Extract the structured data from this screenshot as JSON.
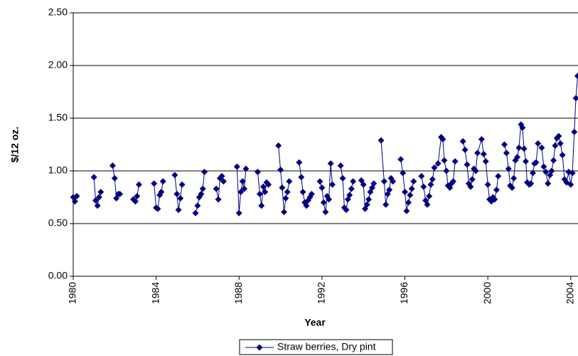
{
  "chart_data": {
    "type": "line",
    "y_label": "$/12 oz.",
    "x_label": "Year",
    "x": [
      1980.0,
      1980.08,
      1980.17,
      null,
      1981.0,
      1981.08,
      1981.17,
      1981.25,
      1981.33,
      null,
      1981.9,
      1982.0,
      1982.08,
      1982.17,
      1982.25,
      null,
      1982.9,
      1983.0,
      1983.08,
      1983.17,
      null,
      1983.9,
      1984.0,
      1984.08,
      1984.17,
      1984.25,
      1984.33,
      null,
      1984.9,
      1985.0,
      1985.08,
      1985.17,
      1985.25,
      null,
      1985.9,
      1986.0,
      1986.08,
      1986.17,
      1986.25,
      1986.33,
      null,
      1986.9,
      1987.0,
      1987.08,
      1987.17,
      1987.25,
      null,
      1987.9,
      1988.0,
      1988.08,
      1988.17,
      1988.25,
      1988.33,
      null,
      1988.9,
      1989.0,
      1989.08,
      1989.17,
      1989.25,
      1989.33,
      1989.42,
      null,
      1989.9,
      1990.0,
      1990.08,
      1990.17,
      1990.25,
      1990.33,
      1990.42,
      null,
      1990.9,
      1991.0,
      1991.08,
      1991.17,
      1991.25,
      1991.33,
      1991.42,
      1991.5,
      null,
      1991.9,
      1992.0,
      1992.08,
      1992.17,
      1992.25,
      1992.33,
      1992.42,
      1992.5,
      null,
      1992.9,
      1993.0,
      1993.08,
      1993.17,
      1993.25,
      1993.33,
      1993.42,
      1993.5,
      null,
      1993.9,
      1994.0,
      1994.08,
      1994.17,
      1994.25,
      1994.33,
      1994.42,
      1994.5,
      null,
      1994.85,
      1995.0,
      1995.08,
      1995.17,
      1995.25,
      1995.33,
      1995.42,
      null,
      1995.8,
      1995.9,
      1996.0,
      1996.08,
      1996.17,
      1996.25,
      1996.33,
      1996.42,
      null,
      1996.8,
      1996.9,
      1997.0,
      1997.08,
      1997.17,
      1997.25,
      1997.33,
      1997.42,
      1997.6,
      1997.75,
      1997.83,
      1997.9,
      1998.0,
      1998.08,
      1998.17,
      1998.25,
      1998.33,
      1998.42,
      null,
      1998.8,
      1998.9,
      1999.0,
      1999.08,
      1999.17,
      1999.25,
      1999.33,
      1999.42,
      1999.5,
      1999.7,
      1999.8,
      1999.9,
      2000.0,
      2000.08,
      2000.17,
      2000.25,
      2000.33,
      2000.42,
      2000.5,
      null,
      2000.8,
      2000.9,
      2001.0,
      2001.08,
      2001.17,
      2001.25,
      2001.33,
      2001.42,
      2001.5,
      2001.6,
      2001.67,
      2001.75,
      2001.83,
      2001.9,
      2002.0,
      2002.08,
      2002.17,
      2002.25,
      2002.33,
      2002.42,
      null,
      2002.6,
      2002.7,
      2002.8,
      2002.9,
      2003.0,
      2003.08,
      2003.17,
      2003.25,
      2003.33,
      2003.42,
      2003.5,
      2003.6,
      2003.7,
      2003.8,
      2003.9,
      2004.0,
      2004.08,
      2004.17,
      2004.25,
      2004.33
    ],
    "series": [
      {
        "name": "Straw berries, Dry pint",
        "color": "#000080",
        "values": [
          0.75,
          0.71,
          0.76,
          null,
          0.94,
          0.72,
          0.67,
          0.75,
          0.8,
          null,
          1.05,
          0.93,
          0.74,
          0.78,
          0.78,
          null,
          0.73,
          0.71,
          0.76,
          0.87,
          null,
          0.88,
          0.65,
          0.64,
          0.77,
          0.8,
          0.9,
          null,
          0.96,
          0.78,
          0.63,
          0.74,
          0.87,
          null,
          0.6,
          0.67,
          0.75,
          0.78,
          0.83,
          0.99,
          null,
          0.83,
          0.73,
          0.93,
          0.95,
          0.9,
          null,
          1.04,
          0.6,
          0.8,
          0.9,
          0.83,
          1.02,
          null,
          0.99,
          0.78,
          0.67,
          0.85,
          0.8,
          0.89,
          0.87,
          null,
          1.24,
          1.01,
          0.84,
          0.61,
          0.74,
          0.8,
          0.9,
          null,
          1.08,
          0.94,
          0.8,
          0.7,
          0.67,
          0.72,
          0.75,
          0.78,
          null,
          0.9,
          0.84,
          0.7,
          0.61,
          0.76,
          0.73,
          1.07,
          0.87,
          null,
          1.05,
          0.93,
          0.65,
          0.63,
          0.73,
          0.77,
          0.83,
          0.9,
          null,
          0.91,
          0.87,
          0.64,
          0.68,
          0.73,
          0.8,
          0.84,
          0.88,
          null,
          1.29,
          0.9,
          0.68,
          0.78,
          0.82,
          0.93,
          0.9,
          null,
          1.11,
          0.98,
          0.8,
          0.62,
          0.7,
          0.77,
          0.83,
          0.9,
          null,
          0.95,
          0.85,
          0.72,
          0.68,
          0.76,
          0.87,
          0.92,
          1.03,
          1.07,
          1.32,
          1.3,
          1.1,
          1.0,
          0.86,
          0.84,
          0.88,
          0.9,
          1.09,
          null,
          1.28,
          1.2,
          1.06,
          0.88,
          0.85,
          0.92,
          1.02,
          1.0,
          1.17,
          1.3,
          1.16,
          1.09,
          0.87,
          0.73,
          0.71,
          0.75,
          0.73,
          0.82,
          0.95,
          null,
          1.25,
          1.17,
          1.02,
          0.86,
          0.84,
          0.93,
          1.1,
          1.13,
          1.22,
          1.44,
          1.41,
          1.21,
          1.09,
          0.89,
          0.87,
          0.88,
          0.98,
          1.07,
          1.08,
          1.26,
          null,
          1.22,
          1.04,
          0.99,
          0.88,
          0.96,
          1.0,
          1.1,
          1.24,
          1.31,
          1.33,
          1.26,
          1.15,
          0.92,
          0.89,
          0.99,
          0.87,
          0.98,
          1.37,
          1.69,
          1.9
        ]
      }
    ],
    "xlim": [
      1980,
      2004.35
    ],
    "xticks": [
      1980,
      1984,
      1988,
      1992,
      1996,
      2000,
      2004
    ],
    "ylim": [
      0,
      2.5
    ],
    "yticks": [
      {
        "value": 0,
        "label": "0.00"
      },
      {
        "value": 0.5,
        "label": "0.50"
      },
      {
        "value": 1,
        "label": "1.00"
      },
      {
        "value": 1.5,
        "label": "1.50"
      },
      {
        "value": 2,
        "label": "2.00"
      },
      {
        "value": 2.5,
        "label": "2.50"
      }
    ],
    "grid": true,
    "legend": "bottom"
  }
}
